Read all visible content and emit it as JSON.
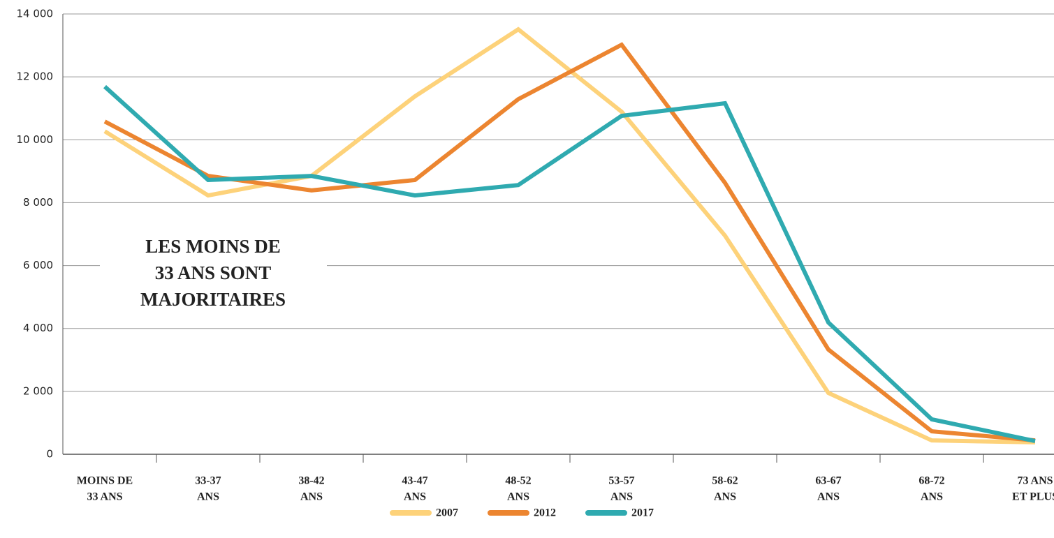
{
  "chart_data": {
    "type": "line",
    "categories": [
      [
        "MOINS DE",
        "33 ANS"
      ],
      [
        "33-37",
        "ANS"
      ],
      [
        "38-42",
        "ANS"
      ],
      [
        "43-47",
        "ANS"
      ],
      [
        "48-52",
        "ANS"
      ],
      [
        "53-57",
        "ANS"
      ],
      [
        "58-62",
        "ANS"
      ],
      [
        "63-67",
        "ANS"
      ],
      [
        "68-72",
        "ANS"
      ],
      [
        "73 ANS",
        "ET PLUS"
      ]
    ],
    "series": [
      {
        "name": "2007",
        "color": "#fdd27a",
        "values": [
          10270,
          8230,
          8850,
          11380,
          13510,
          10890,
          6950,
          1950,
          440,
          380
        ]
      },
      {
        "name": "2012",
        "color": "#ec8530",
        "values": [
          10580,
          8850,
          8390,
          8720,
          11290,
          13020,
          8630,
          3330,
          730,
          440
        ]
      },
      {
        "name": "2017",
        "color": "#2faab0",
        "values": [
          11690,
          8720,
          8850,
          8230,
          8560,
          10760,
          11160,
          4190,
          1110,
          420
        ]
      }
    ],
    "ylim": [
      0,
      14000
    ],
    "yticks": [
      0,
      {
        "value": 2000,
        "label": "2 000"
      },
      {
        "value": 4000,
        "label": "4 000"
      },
      {
        "value": 6000,
        "label": "6 000"
      },
      {
        "value": 8000,
        "label": "8 000"
      },
      {
        "value": 10000,
        "label": "10 000"
      },
      {
        "value": 12000,
        "label": "12 000"
      },
      {
        "value": 14000,
        "label": "14 000"
      }
    ],
    "grid": true,
    "annotation": [
      "LES MOINS DE",
      "33 ANS SONT",
      "MAJORITAIRES"
    ],
    "legend": "bottom"
  }
}
